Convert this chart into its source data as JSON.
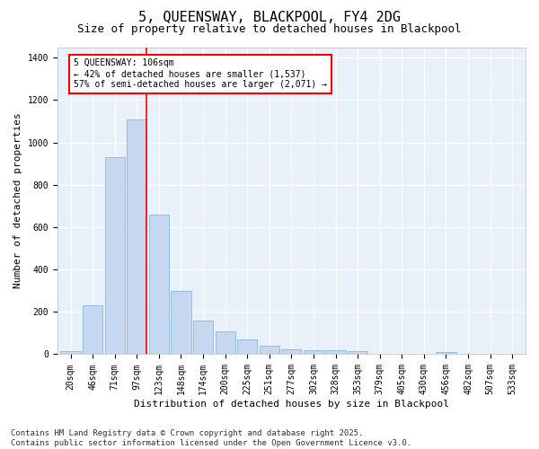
{
  "title": "5, QUEENSWAY, BLACKPOOL, FY4 2DG",
  "subtitle": "Size of property relative to detached houses in Blackpool",
  "xlabel": "Distribution of detached houses by size in Blackpool",
  "ylabel": "Number of detached properties",
  "categories": [
    "20sqm",
    "46sqm",
    "71sqm",
    "97sqm",
    "123sqm",
    "148sqm",
    "174sqm",
    "200sqm",
    "225sqm",
    "251sqm",
    "277sqm",
    "302sqm",
    "328sqm",
    "353sqm",
    "379sqm",
    "405sqm",
    "430sqm",
    "456sqm",
    "482sqm",
    "507sqm",
    "533sqm"
  ],
  "values": [
    15,
    230,
    930,
    1110,
    660,
    300,
    160,
    110,
    70,
    40,
    25,
    20,
    20,
    15,
    0,
    0,
    0,
    10,
    0,
    0,
    0
  ],
  "bar_color": "#c5d8f0",
  "bar_edge_color": "#7aafd4",
  "background_color": "#e8f0fa",
  "grid_color": "#ffffff",
  "vline_color": "red",
  "annotation_text": "5 QUEENSWAY: 106sqm\n← 42% of detached houses are smaller (1,537)\n57% of semi-detached houses are larger (2,071) →",
  "ylim": [
    0,
    1450
  ],
  "yticks": [
    0,
    200,
    400,
    600,
    800,
    1000,
    1200,
    1400
  ],
  "footnote": "Contains HM Land Registry data © Crown copyright and database right 2025.\nContains public sector information licensed under the Open Government Licence v3.0.",
  "title_fontsize": 11,
  "subtitle_fontsize": 9,
  "xlabel_fontsize": 8,
  "ylabel_fontsize": 8,
  "tick_fontsize": 7,
  "annotation_fontsize": 7,
  "footnote_fontsize": 6.5
}
